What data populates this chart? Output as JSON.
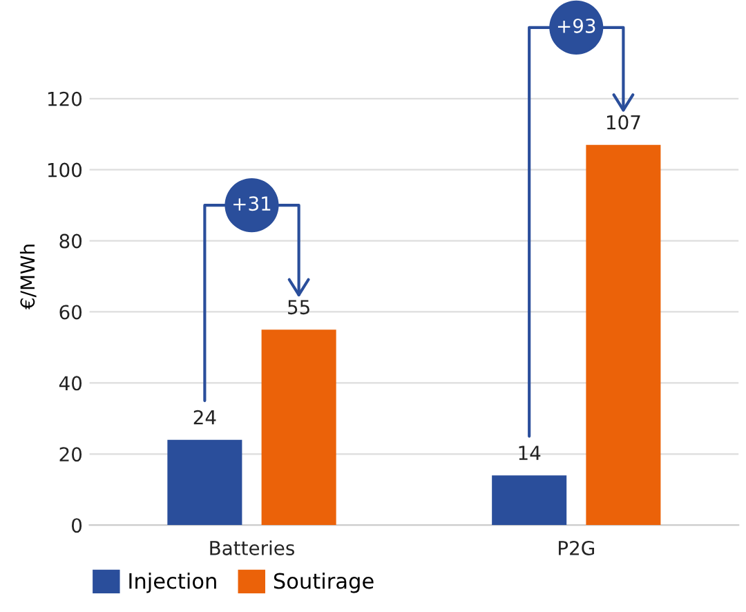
{
  "chart_data": {
    "type": "bar",
    "ylabel": "€/MWh",
    "categories": [
      "Batteries",
      "P2G"
    ],
    "series": [
      {
        "name": "Injection",
        "color": "#2a4e9b",
        "values": [
          24,
          14
        ]
      },
      {
        "name": "Soutirage",
        "color": "#eb6209",
        "values": [
          55,
          107
        ]
      }
    ],
    "ylim": [
      0,
      140
    ],
    "yticks": [
      0,
      20,
      40,
      60,
      80,
      100,
      120
    ],
    "grid": "y",
    "legend": "bottom left",
    "data_labels": true,
    "annotations": [
      {
        "text": "+31",
        "x": "Batteries",
        "y": 90
      },
      {
        "text": "+93",
        "x": "P2G",
        "y": 140
      }
    ]
  }
}
